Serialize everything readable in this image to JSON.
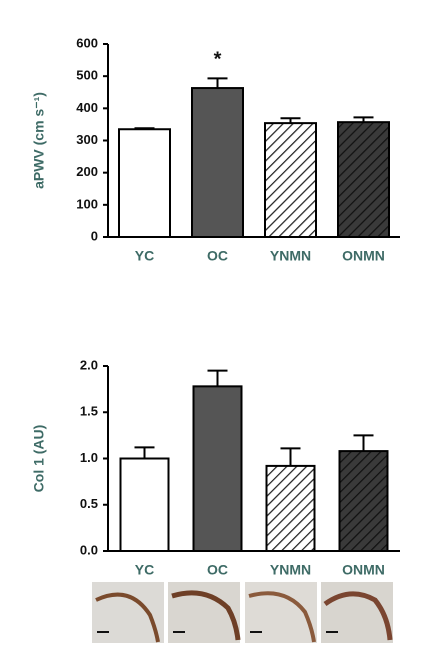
{
  "chart_data": [
    {
      "type": "bar",
      "y_label": "aPWV (cm s⁻¹)",
      "annotation": "*",
      "categories": [
        "YC",
        "OC",
        "YNMN",
        "ONMN"
      ],
      "values": [
        335,
        463,
        354,
        357
      ],
      "errors": [
        3,
        30,
        15,
        15
      ],
      "colors": [
        "#ffffff",
        "#555555",
        "#ffffff",
        "#3a3a3a"
      ],
      "hatched": [
        false,
        false,
        true,
        true
      ],
      "ylim": [
        0,
        600
      ],
      "yticks": [
        0,
        100,
        200,
        300,
        400,
        500,
        600
      ]
    },
    {
      "type": "bar",
      "y_label": "Col 1 (AU)",
      "categories": [
        "YC",
        "OC",
        "YNMN",
        "ONMN"
      ],
      "values": [
        1.0,
        1.78,
        0.92,
        1.08
      ],
      "errors": [
        0.12,
        0.17,
        0.19,
        0.17
      ],
      "colors": [
        "#ffffff",
        "#555555",
        "#ffffff",
        "#3a3a3a"
      ],
      "hatched": [
        false,
        false,
        true,
        true
      ],
      "ylim": [
        0,
        2.0
      ],
      "yticks": [
        {
          "value": 0,
          "label": "0.0"
        },
        0.5,
        {
          "value": 1.0,
          "label": "1.0"
        },
        1.5,
        {
          "value": 2.0,
          "label": "2.0"
        }
      ]
    }
  ]
}
